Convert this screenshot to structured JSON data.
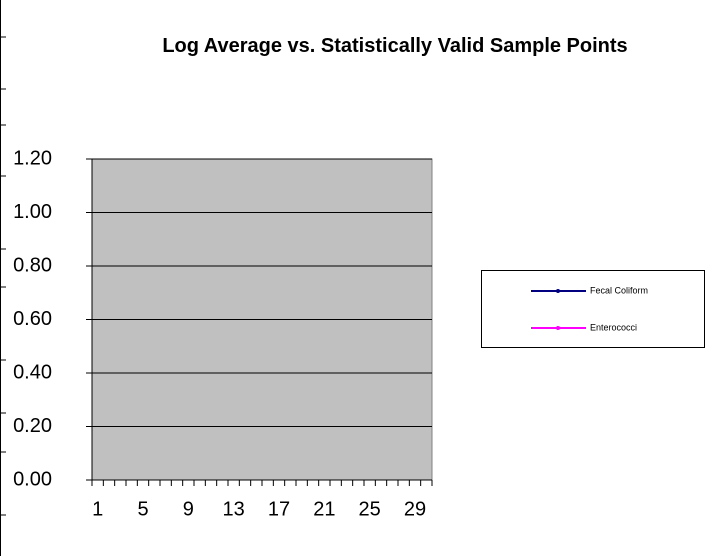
{
  "chart_data": {
    "type": "line",
    "title": "Log Average vs. Statistically Valid Sample Points",
    "categories": [
      "1",
      null,
      null,
      null,
      "5",
      null,
      null,
      null,
      "9",
      null,
      null,
      null,
      "13",
      null,
      null,
      null,
      "17",
      null,
      null,
      null,
      "21",
      null,
      null,
      null,
      "25",
      null,
      null,
      null,
      "29",
      null
    ],
    "series": [
      {
        "name": "Fecal Coliform",
        "color": "#000080",
        "values": [
          null,
          null,
          null,
          null,
          null,
          null,
          null,
          null,
          null,
          null,
          null,
          null,
          null,
          null,
          null,
          null,
          null,
          null,
          null,
          null,
          null,
          null,
          null,
          null,
          null,
          null,
          null,
          null,
          null,
          null
        ]
      },
      {
        "name": "Enterococci",
        "color": "#ff00ff",
        "values": [
          null,
          null,
          null,
          null,
          null,
          null,
          null,
          null,
          null,
          null,
          null,
          null,
          null,
          null,
          null,
          null,
          null,
          null,
          null,
          null,
          null,
          null,
          null,
          null,
          null,
          null,
          null,
          null,
          null,
          null
        ]
      }
    ],
    "ylim": [
      0,
      1.2
    ],
    "yticks": [
      {
        "value": 0,
        "label": "0.00"
      },
      {
        "value": 0.2,
        "label": "0.20"
      },
      {
        "value": 0.4,
        "label": "0.40"
      },
      {
        "value": 0.6,
        "label": "0.60"
      },
      {
        "value": 0.8,
        "label": "0.80"
      },
      {
        "value": 1,
        "label": "1.00"
      },
      {
        "value": 1.2,
        "label": "1.20"
      }
    ],
    "grid": true,
    "plot_background": "#c0c0c0",
    "legend": "right"
  }
}
